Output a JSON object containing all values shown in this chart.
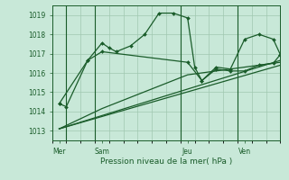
{
  "background_color": "#c8e8d8",
  "grid_color": "#a0c8b0",
  "line_color": "#1a5c2a",
  "marker_color": "#1a5c2a",
  "xlabel": "Pression niveau de la mer( hPa )",
  "ylim": [
    1012.5,
    1019.5
  ],
  "yticks": [
    1013,
    1014,
    1015,
    1016,
    1017,
    1018,
    1019
  ],
  "xlim": [
    0,
    16
  ],
  "day_labels": [
    "Mer",
    "Sam",
    "Jeu",
    "Ven"
  ],
  "day_positions": [
    0.5,
    3.5,
    9.5,
    13.5
  ],
  "vline_positions": [
    1,
    3,
    9,
    13
  ],
  "series1_x": [
    0.5,
    1.0,
    2.5,
    3.5,
    4.0,
    4.5,
    5.5,
    6.5,
    7.5,
    8.5,
    9.5,
    10.0,
    10.5,
    11.5,
    12.5,
    13.5,
    14.5,
    15.5,
    16.0
  ],
  "series1_y": [
    1014.4,
    1014.25,
    1016.65,
    1017.55,
    1017.3,
    1017.1,
    1017.4,
    1018.0,
    1019.1,
    1019.1,
    1018.85,
    1016.3,
    1015.6,
    1016.3,
    1016.2,
    1017.75,
    1018.0,
    1017.75,
    1016.95
  ],
  "series2_x": [
    0.5,
    2.5,
    3.5,
    9.5,
    10.5,
    11.5,
    12.5,
    13.5,
    14.5,
    15.5,
    16.0
  ],
  "series2_y": [
    1014.4,
    1016.65,
    1017.1,
    1016.55,
    1015.6,
    1016.2,
    1016.1,
    1016.1,
    1016.4,
    1016.5,
    1016.95
  ],
  "series3_x": [
    0.5,
    16.0
  ],
  "series3_y": [
    1013.1,
    1016.65
  ],
  "series4_x": [
    0.5,
    3.5,
    9.5,
    16.0
  ],
  "series4_y": [
    1013.1,
    1014.15,
    1015.9,
    1016.55
  ],
  "series5_x": [
    0.5,
    16.0
  ],
  "series5_y": [
    1013.1,
    1016.4
  ]
}
